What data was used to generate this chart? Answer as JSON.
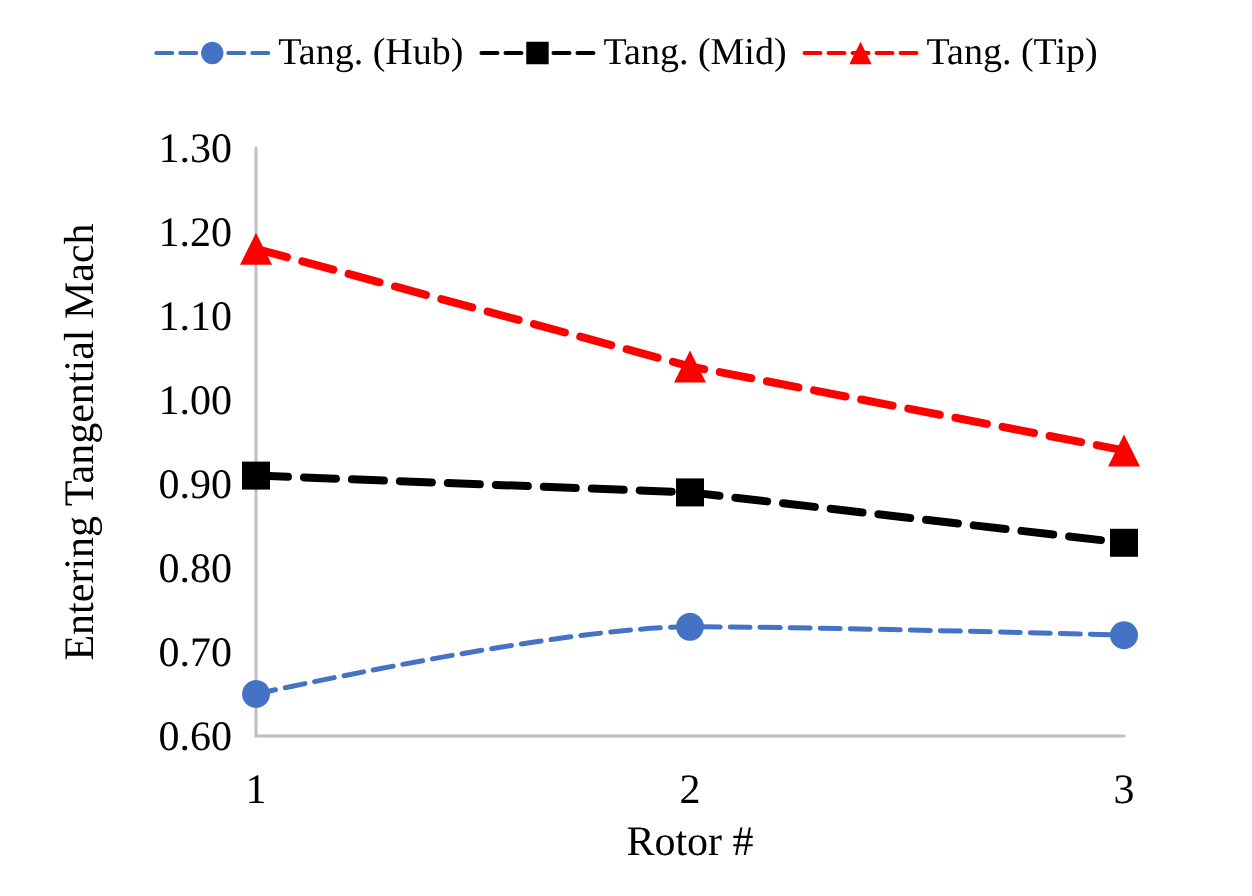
{
  "chart_data": {
    "type": "line",
    "xlabel": "Rotor #",
    "ylabel": "Entering Tangential Mach",
    "categories": [
      "1",
      "2",
      "3"
    ],
    "ylim": [
      0.6,
      1.3
    ],
    "yticks": [
      {
        "value": 0.6,
        "label": "0.60"
      },
      {
        "value": 0.7,
        "label": "0.70"
      },
      {
        "value": 0.8,
        "label": "0.80"
      },
      {
        "value": 0.9,
        "label": "0.90"
      },
      {
        "value": 1.0,
        "label": "1.00"
      },
      {
        "value": 1.1,
        "label": "1.10"
      },
      {
        "value": 1.2,
        "label": "1.20"
      },
      {
        "value": 1.3,
        "label": "1.30"
      }
    ],
    "grid": false,
    "legend": "top",
    "line_style": "dashed",
    "series": [
      {
        "name": "Tang. (Hub)",
        "color": "#4472c4",
        "marker": "circle",
        "values": [
          0.65,
          0.73,
          0.72
        ]
      },
      {
        "name": "Tang. (Mid)",
        "color": "#000000",
        "marker": "square",
        "values": [
          0.91,
          0.89,
          0.83
        ]
      },
      {
        "name": "Tang. (Tip)",
        "color": "#ff0000",
        "marker": "triangle",
        "values": [
          1.18,
          1.04,
          0.94
        ]
      }
    ]
  }
}
